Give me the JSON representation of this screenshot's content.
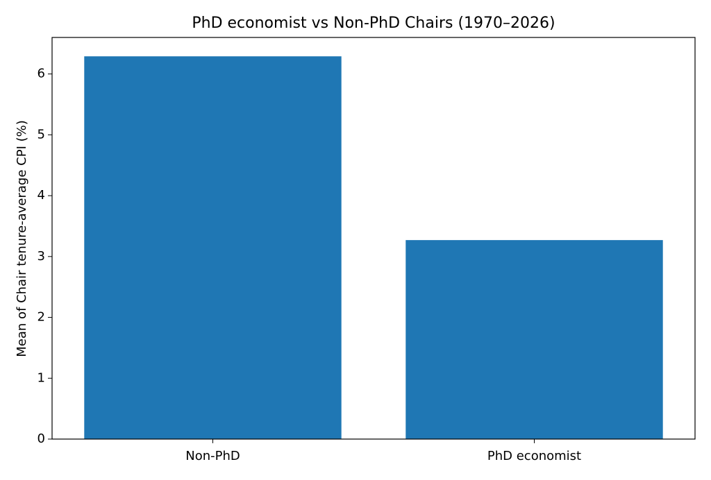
{
  "chart_data": {
    "type": "bar",
    "title": "PhD economist vs Non-PhD Chairs (1970–2026)",
    "y_label": "Mean of Chair tenure-average CPI (%)",
    "categories": [
      "Non-PhD",
      "PhD economist"
    ],
    "values": [
      6.29,
      3.27
    ],
    "color": "#1f77b4",
    "ylim": [
      0,
      6.6
    ],
    "yticks": [
      0,
      1,
      2,
      3,
      4,
      5,
      6
    ],
    "grid": false
  }
}
